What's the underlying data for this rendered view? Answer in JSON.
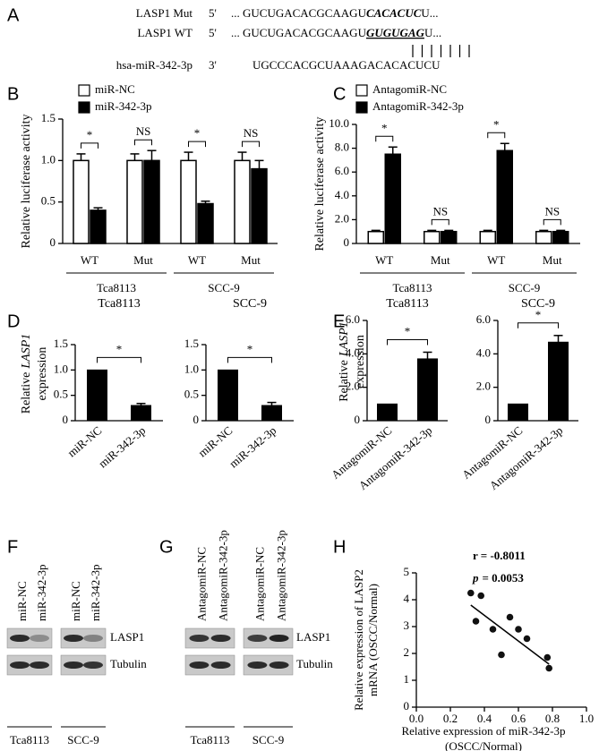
{
  "panels": [
    "A",
    "B",
    "C",
    "D",
    "E",
    "F",
    "G",
    "H"
  ],
  "sequence": {
    "rows": [
      {
        "name": "LASP1 Mut",
        "end": "5'",
        "seq": "... GUCUGACACGCAAGU",
        "site": "CACACUC",
        "tail": "U..."
      },
      {
        "name": "LASP1 WT",
        "end": "5'",
        "seq": "... GUCUGACACGCAAGU",
        "site": "GUGUGAG",
        "tail": "U..."
      },
      {
        "name": "hsa-miR-342-3p",
        "end": "3'",
        "seq": "UGCCCACGCUAAAGACACACUCU"
      }
    ]
  },
  "chart_data": [
    {
      "type": "grouped-bar",
      "ylabel": "Relative luciferase activity",
      "categories": [
        "WT",
        "Mut",
        "WT",
        "Mut"
      ],
      "groups": [
        "Tca8113",
        "SCC-9"
      ],
      "series": [
        {
          "name": "miR-NC",
          "color": "#ffffff",
          "values": [
            1.0,
            1.0,
            1.0,
            1.0
          ],
          "errors": [
            0.08,
            0.08,
            0.1,
            0.1
          ]
        },
        {
          "name": "miR-342-3p",
          "color": "#000000",
          "values": [
            0.4,
            1.0,
            0.48,
            0.9
          ],
          "errors": [
            0.03,
            0.12,
            0.03,
            0.1
          ]
        }
      ],
      "significance": [
        "*",
        "NS",
        "*",
        "NS"
      ],
      "ylim": [
        0,
        1.5
      ],
      "yticks": [
        0,
        0.5,
        {
          "value": 1,
          "label": "1.0"
        },
        1.5
      ]
    },
    {
      "type": "grouped-bar",
      "ylabel": "Relative luciferase activity",
      "categories": [
        "WT",
        "Mut",
        "WT",
        "Mut"
      ],
      "groups": [
        "Tca8113",
        "SCC-9"
      ],
      "series": [
        {
          "name": "AntagomiR-NC",
          "color": "#ffffff",
          "values": [
            1.0,
            1.0,
            1.0,
            1.0
          ],
          "errors": [
            0.1,
            0.1,
            0.1,
            0.1
          ]
        },
        {
          "name": "AntagomiR-342-3p",
          "color": "#000000",
          "values": [
            7.5,
            1.0,
            7.8,
            1.0
          ],
          "errors": [
            0.6,
            0.1,
            0.6,
            0.1
          ]
        }
      ],
      "significance": [
        "*",
        "NS",
        "*",
        "NS"
      ],
      "ylim": [
        0,
        10
      ],
      "yticks": [
        0,
        {
          "value": 2,
          "label": "2.0"
        },
        {
          "value": 4,
          "label": "4.0"
        },
        {
          "value": 6,
          "label": "6.0"
        },
        {
          "value": 8,
          "label": "8.0"
        },
        {
          "value": 10,
          "label": "10.0"
        }
      ]
    },
    {
      "type": "bar",
      "title": "Tca8113",
      "ylabel": [
        "Relative",
        "LASP1",
        "expression"
      ],
      "categories": [
        "miR-NC",
        "miR-342-3p"
      ],
      "values": [
        1.0,
        0.3
      ],
      "errors": [
        null,
        0.04
      ],
      "color": "#000000",
      "significance": [
        "*"
      ],
      "ylim": [
        0,
        1.5
      ],
      "yticks": [
        0,
        0.5,
        {
          "value": 1,
          "label": "1.0"
        },
        1.5
      ]
    },
    {
      "type": "bar",
      "title": "SCC-9",
      "categories": [
        "miR-NC",
        "miR-342-3p"
      ],
      "values": [
        1.0,
        0.3
      ],
      "errors": [
        null,
        0.06
      ],
      "color": "#000000",
      "significance": [
        "*"
      ],
      "ylim": [
        0,
        1.5
      ],
      "yticks": [
        0,
        0.5,
        {
          "value": 1,
          "label": "1.0"
        },
        1.5
      ]
    },
    {
      "type": "bar",
      "title": "Tca8113",
      "ylabel": [
        "Relative",
        "LASP1",
        "expression"
      ],
      "categories": [
        "AntagomiR-NC",
        "AntagomiR-342-3p"
      ],
      "values": [
        1.0,
        3.7
      ],
      "errors": [
        null,
        0.4
      ],
      "color": "#000000",
      "significance": [
        "*"
      ],
      "ylim": [
        0,
        6
      ],
      "yticks": [
        0,
        {
          "value": 2,
          "label": "2.0"
        },
        {
          "value": 4,
          "label": "4.0"
        },
        {
          "value": 6,
          "label": "6.0"
        }
      ]
    },
    {
      "type": "bar",
      "title": "SCC-9",
      "categories": [
        "AntagomiR-NC",
        "AntagomiR-342-3p"
      ],
      "values": [
        1.0,
        4.7
      ],
      "errors": [
        null,
        0.4
      ],
      "color": "#000000",
      "significance": [
        "*"
      ],
      "ylim": [
        0,
        6
      ],
      "yticks": [
        0,
        {
          "value": 2,
          "label": "2.0"
        },
        {
          "value": 4,
          "label": "4.0"
        },
        {
          "value": 6,
          "label": "6.0"
        }
      ]
    },
    {
      "type": "scatter",
      "ylabel": [
        "Relative expression of LASP2",
        "mRNA  (OSCC/Normal)"
      ],
      "xlabel": [
        "Relative expression of miR-342-3p",
        "(OSCC/Normal)"
      ],
      "x": [
        0.32,
        0.35,
        0.38,
        0.45,
        0.5,
        0.55,
        0.6,
        0.65,
        0.77,
        0.78
      ],
      "y": [
        4.25,
        3.2,
        4.15,
        2.9,
        1.95,
        3.35,
        2.9,
        2.55,
        1.85,
        1.45
      ],
      "fit": {
        "x": [
          0.32,
          0.78
        ],
        "y": [
          3.8,
          1.6
        ]
      },
      "annotations": {
        "r": "r = -0.8011",
        "p_symbol": "p",
        "p_value": "= 0.0053"
      },
      "xlim": [
        0,
        1
      ],
      "xticks": [
        {
          "value": 0,
          "label": "0.0"
        },
        0.2,
        0.4,
        0.6,
        0.8,
        {
          "value": 1,
          "label": "1.0"
        }
      ],
      "ylim": [
        0,
        5
      ],
      "yticks": [
        0,
        1,
        2,
        3,
        4,
        5
      ]
    }
  ],
  "blots": [
    {
      "lanes": [
        "miR-NC",
        "miR-342-3p",
        "miR-NC",
        "miR-342-3p"
      ],
      "bands": [
        "LASP1",
        "Tubulin"
      ],
      "cell_lines": [
        "Tca8113",
        "SCC-9"
      ]
    },
    {
      "lanes": [
        "AntagomiR-NC",
        "AntagomiR-342-3p",
        "AntagomiR-NC",
        "AntagomiR-342-3p"
      ],
      "bands": [
        "LASP1",
        "Tubulin"
      ],
      "cell_lines": [
        "Tca8113",
        "SCC-9"
      ]
    }
  ]
}
